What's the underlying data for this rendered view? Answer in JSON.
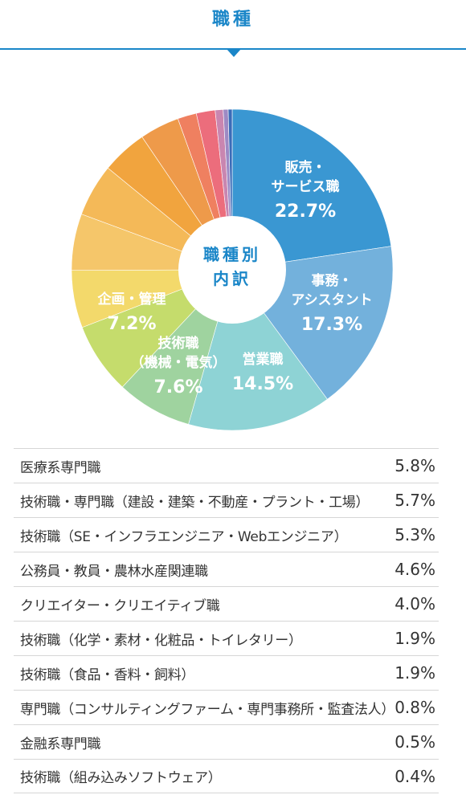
{
  "page": {
    "title": "職種"
  },
  "colors": {
    "accent": "#1a86c8"
  },
  "chart_data": {
    "type": "pie",
    "center_label": [
      "職種別",
      "内訳"
    ],
    "slices": [
      {
        "label": [
          "販売・",
          "サービス職"
        ],
        "value": 22.7,
        "value_label": "22.7%",
        "color": "#3a97d2",
        "shown": true
      },
      {
        "label": [
          "事務・",
          "アシスタント"
        ],
        "value": 17.3,
        "value_label": "17.3%",
        "color": "#73b1dc",
        "shown": true
      },
      {
        "label": [
          "営業職"
        ],
        "value": 14.5,
        "value_label": "14.5%",
        "color": "#8ed3d5",
        "shown": true
      },
      {
        "label": [
          "技術職",
          "（機械・電気）"
        ],
        "value": 7.6,
        "value_label": "7.6%",
        "color": "#9fd39f",
        "shown": true
      },
      {
        "label": [
          "企画・管理"
        ],
        "value": 7.2,
        "value_label": "7.2%",
        "color": "#c5dc6c",
        "shown": true
      },
      {
        "label": [
          "医療系専門職"
        ],
        "value": 5.8,
        "value_label": "5.8%",
        "color": "#f3d96b",
        "shown": false
      },
      {
        "label": [
          "技術職・専門職（建設・建築・不動産・プラント・工場）"
        ],
        "value": 5.7,
        "value_label": "5.7%",
        "color": "#f5c66a",
        "shown": false
      },
      {
        "label": [
          "技術職（SE・インフラエンジニア・Webエンジニア）"
        ],
        "value": 5.3,
        "value_label": "5.3%",
        "color": "#f4b958",
        "shown": false
      },
      {
        "label": [
          "公務員・教員・農林水産関連職"
        ],
        "value": 4.6,
        "value_label": "4.6%",
        "color": "#f1a43e",
        "shown": false
      },
      {
        "label": [
          "クリエイター・クリエイティブ職"
        ],
        "value": 4.0,
        "value_label": "4.0%",
        "color": "#ee9a4a",
        "shown": false
      },
      {
        "label": [
          "技術職（化学・素材・化粧品・トイレタリー）"
        ],
        "value": 1.9,
        "value_label": "1.9%",
        "color": "#ef8060",
        "shown": false
      },
      {
        "label": [
          "技術職（食品・香料・飼料）"
        ],
        "value": 1.9,
        "value_label": "1.9%",
        "color": "#ec6d7c",
        "shown": false
      },
      {
        "label": [
          "専門職（コンサルティングファーム・専門事務所・監査法人）"
        ],
        "value": 0.8,
        "value_label": "0.8%",
        "color": "#c986b0",
        "shown": false
      },
      {
        "label": [
          "金融系専門職"
        ],
        "value": 0.5,
        "value_label": "0.5%",
        "color": "#9d8ac4",
        "shown": false
      },
      {
        "label": [
          "技術職（組み込みソフトウェア）"
        ],
        "value": 0.4,
        "value_label": "0.4%",
        "color": "#3b6cb8",
        "shown": false
      }
    ]
  },
  "table": {
    "rows": [
      {
        "label": "医療系専門職",
        "value": "5.8%"
      },
      {
        "label": "技術職・専門職（建設・建築・不動産・プラント・工場）",
        "value": "5.7%"
      },
      {
        "label": "技術職（SE・インフラエンジニア・Webエンジニア）",
        "value": "5.3%"
      },
      {
        "label": "公務員・教員・農林水産関連職",
        "value": "4.6%"
      },
      {
        "label": "クリエイター・クリエイティブ職",
        "value": "4.0%"
      },
      {
        "label": "技術職（化学・素材・化粧品・トイレタリー）",
        "value": "1.9%"
      },
      {
        "label": "技術職（食品・香料・飼料）",
        "value": "1.9%"
      },
      {
        "label": "専門職（コンサルティングファーム・専門事務所・監査法人）",
        "value": "0.8%"
      },
      {
        "label": "金融系専門職",
        "value": "0.5%"
      },
      {
        "label": "技術職（組み込みソフトウェア）",
        "value": "0.4%"
      }
    ]
  }
}
